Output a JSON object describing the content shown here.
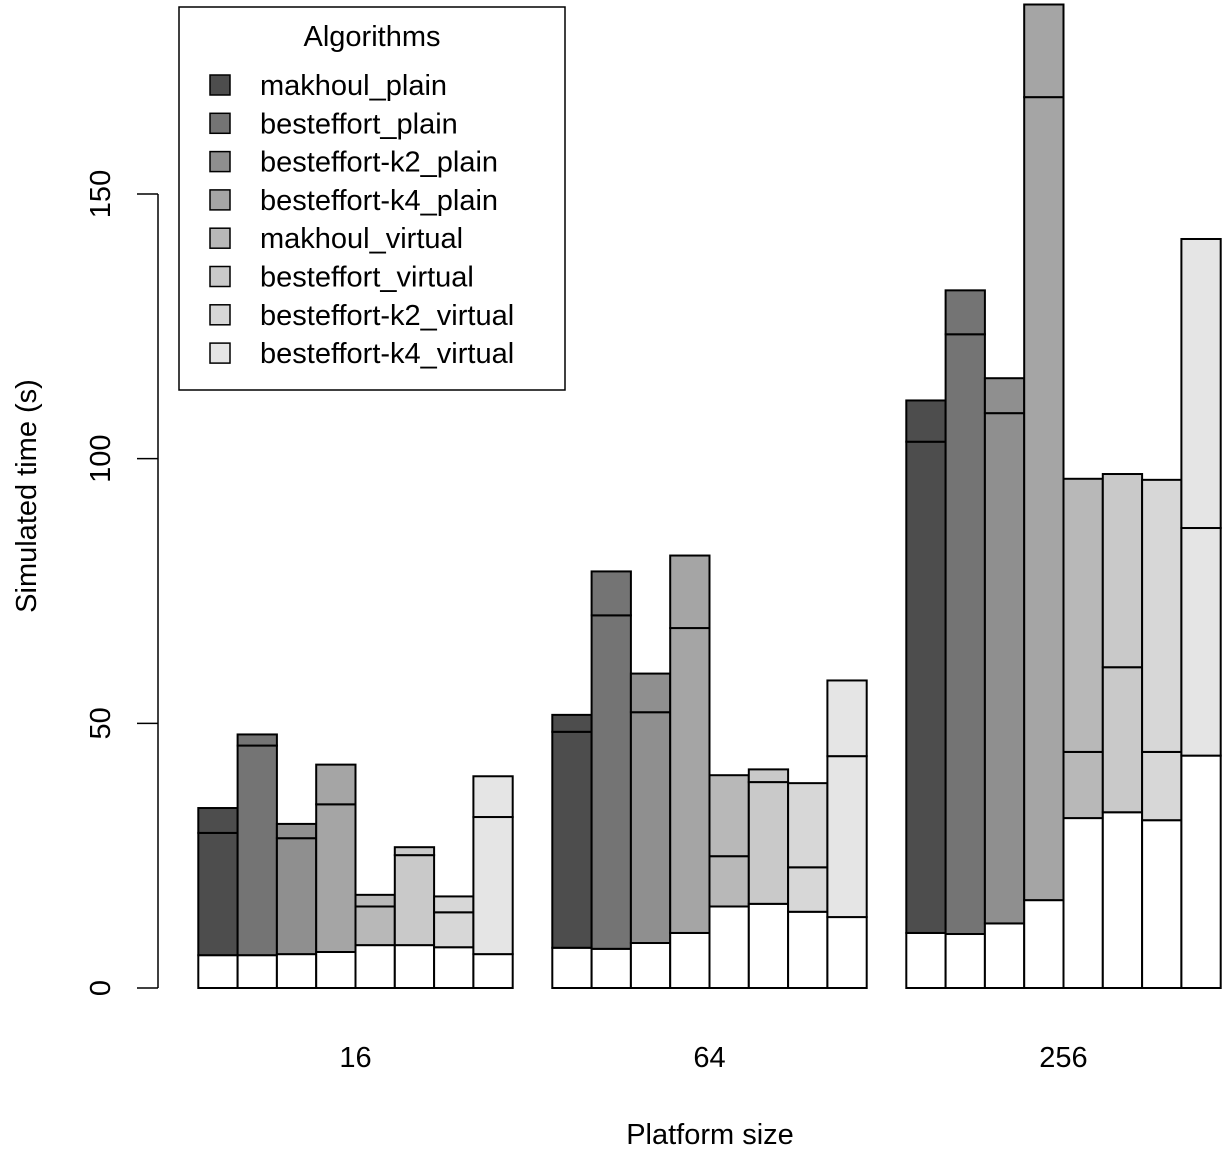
{
  "chart_data": {
    "type": "bar",
    "stacked_segments": [
      "lower",
      "middle",
      "upper"
    ],
    "xlabel": "Platform size",
    "ylabel": "Simulated time (s)",
    "ylim": [
      0,
      150
    ],
    "y_ticks": [
      "0",
      "50",
      "100",
      "150"
    ],
    "grid": false,
    "legend_position": "top-left",
    "legend_title": "Algorithms",
    "categories": [
      "16",
      "64",
      "256"
    ],
    "series": [
      {
        "name": "makhoul_plain",
        "color": "#4d4d4d",
        "stacks": [
          [
            6.2,
            29.3,
            34.0
          ],
          [
            7.6,
            48.4,
            51.6
          ],
          [
            10.4,
            103.2,
            111.0
          ]
        ]
      },
      {
        "name": "besteffort_plain",
        "color": "#747474",
        "stacks": [
          [
            6.2,
            45.8,
            47.9
          ],
          [
            7.4,
            70.4,
            78.7
          ],
          [
            10.2,
            123.5,
            131.8
          ]
        ]
      },
      {
        "name": "besteffort-k2_plain",
        "color": "#8f8f8f",
        "stacks": [
          [
            6.4,
            28.3,
            31.0
          ],
          [
            8.5,
            52.1,
            59.4
          ],
          [
            12.2,
            108.6,
            115.2
          ]
        ]
      },
      {
        "name": "besteffort-k4_plain",
        "color": "#a5a5a5",
        "stacks": [
          [
            6.8,
            34.7,
            42.2
          ],
          [
            10.4,
            68.0,
            81.7
          ],
          [
            16.6,
            168.3,
            185.8
          ]
        ]
      },
      {
        "name": "makhoul_virtual",
        "color": "#b8b8b8",
        "stacks": [
          [
            8.1,
            15.4,
            17.6
          ],
          [
            15.4,
            24.9,
            40.2
          ],
          [
            32.1,
            44.6,
            96.2
          ]
        ]
      },
      {
        "name": "besteffort_virtual",
        "color": "#c9c9c9",
        "stacks": [
          [
            8.1,
            25.1,
            26.6
          ],
          [
            15.9,
            38.9,
            41.3
          ],
          [
            33.2,
            60.6,
            97.1
          ]
        ]
      },
      {
        "name": "besteffort-k2_virtual",
        "color": "#d7d7d7",
        "stacks": [
          [
            7.7,
            14.3,
            17.3
          ],
          [
            14.4,
            22.8,
            38.7
          ],
          [
            31.7,
            44.6,
            96.0
          ]
        ]
      },
      {
        "name": "besteffort-k4_virtual",
        "color": "#e5e5e5",
        "stacks": [
          [
            6.4,
            32.3,
            40.0
          ],
          [
            13.4,
            43.8,
            58.1
          ],
          [
            43.9,
            86.9,
            141.5
          ]
        ]
      }
    ],
    "colors": {
      "bottom_segment": "#ffffff",
      "outline": "#000000",
      "background": "#ffffff"
    }
  }
}
